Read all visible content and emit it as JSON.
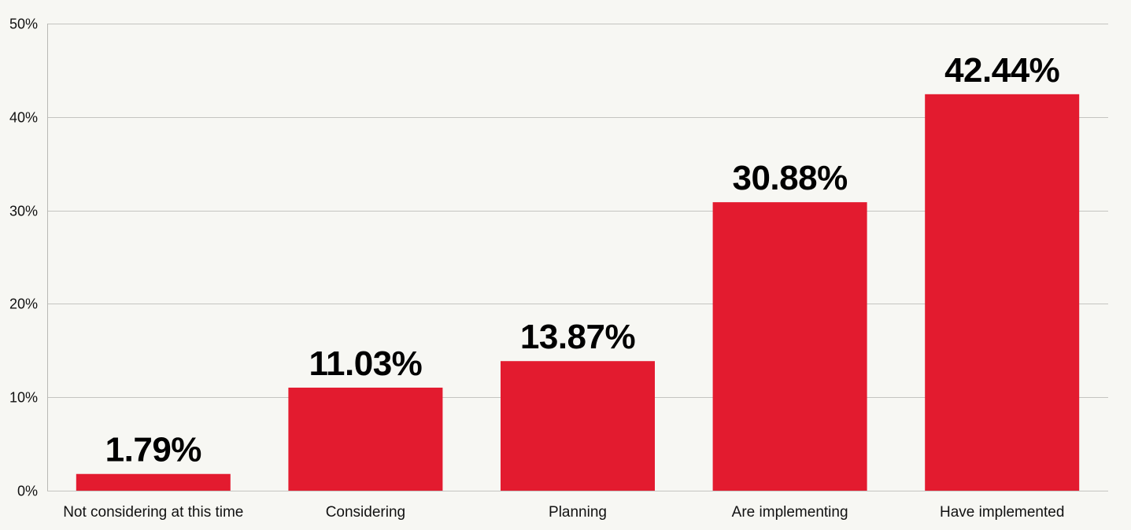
{
  "chart_data": {
    "type": "bar",
    "title": "",
    "xlabel": "",
    "ylabel": "",
    "categories": [
      "Not considering at this time",
      "Considering",
      "Planning",
      "Are implementing",
      "Have implemented"
    ],
    "values": [
      1.79,
      11.03,
      13.87,
      30.88,
      42.44
    ],
    "value_labels": [
      "1.79%",
      "11.03%",
      "13.87%",
      "30.88%",
      "42.44%"
    ],
    "ylim": [
      0,
      50
    ],
    "yticks": [
      0,
      10,
      20,
      30,
      40,
      50
    ],
    "ytick_labels": [
      "0%",
      "10%",
      "20%",
      "30%",
      "40%",
      "50%"
    ],
    "grid": true,
    "legend": "none",
    "bar_color": "#e31b2f",
    "background_color": "#f7f7f3"
  }
}
